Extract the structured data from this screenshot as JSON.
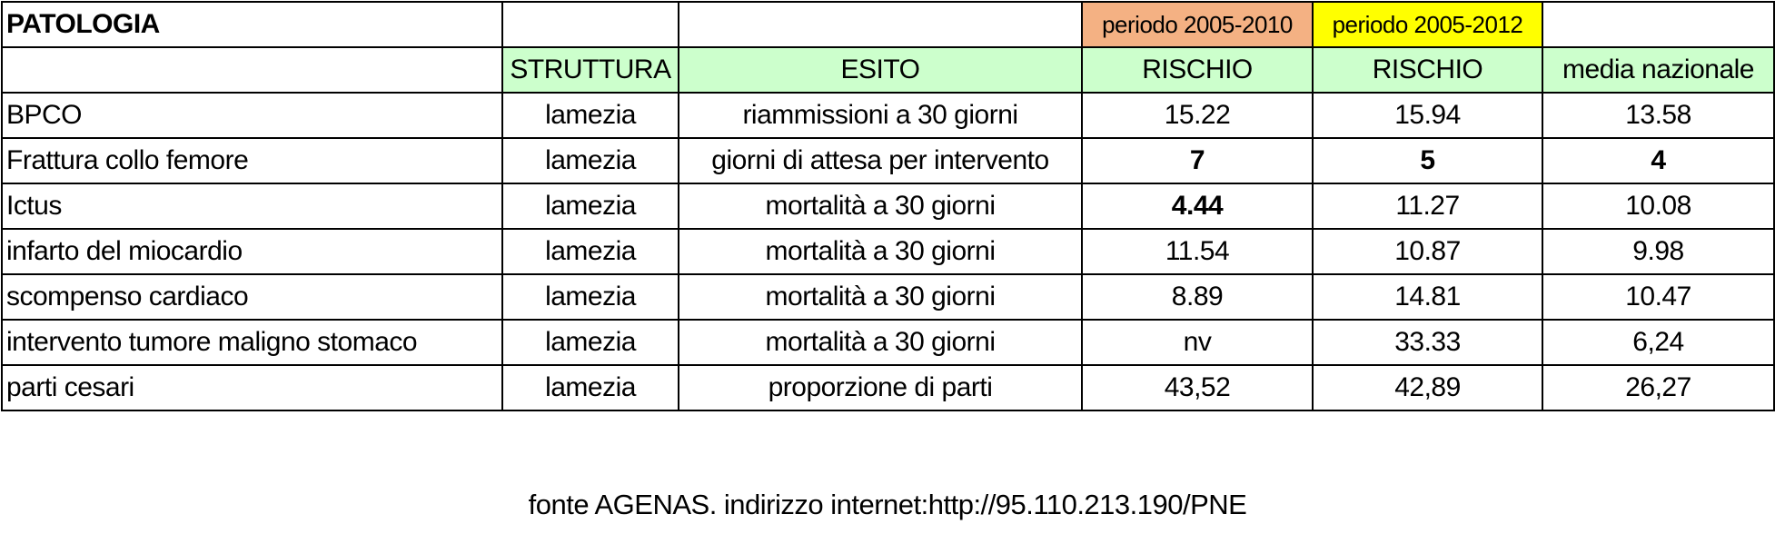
{
  "table": {
    "title": "PATOLOGIA",
    "period_a": "periodo 2005-2010",
    "period_b": "periodo 2005-2012",
    "colors": {
      "period_a": "#f4b183",
      "period_b": "#ffff00",
      "header": "#ccffcc"
    },
    "headers": [
      "",
      "STRUTTURA",
      "ESITO",
      "RISCHIO",
      "RISCHIO",
      "media nazionale"
    ],
    "rows": [
      {
        "patologia": "BPCO",
        "struttura": "lamezia",
        "esito": "riammissioni a 30 giorni",
        "rischio_a": "15.22",
        "rischio_b": "15.94",
        "media": "13.58"
      },
      {
        "patologia": "Frattura collo femore",
        "struttura": "lamezia",
        "esito": "giorni di attesa per intervento",
        "rischio_a": "7",
        "rischio_b": "5",
        "media": "4"
      },
      {
        "patologia": "Ictus",
        "struttura": "lamezia",
        "esito": "mortalità a 30 giorni",
        "rischio_a": "4.44",
        "rischio_b": "11.27",
        "media": "10.08"
      },
      {
        "patologia": "infarto del miocardio",
        "struttura": "lamezia",
        "esito": "mortalità a 30 giorni",
        "rischio_a": "11.54",
        "rischio_b": "10.87",
        "media": "9.98"
      },
      {
        "patologia": "scompenso cardiaco",
        "struttura": "lamezia",
        "esito": "mortalità a 30 giorni",
        "rischio_a": "8.89",
        "rischio_b": "14.81",
        "media": "10.47"
      },
      {
        "patologia": "intervento tumore maligno  stomaco",
        "struttura": "lamezia",
        "esito": "mortalità a 30 giorni",
        "rischio_a": "nv",
        "rischio_b": "33.33",
        "media": "6,24"
      },
      {
        "patologia": "parti cesari",
        "struttura": "lamezia",
        "esito": "proporzione di parti",
        "rischio_a": "43,52",
        "rischio_b": "42,89",
        "media": "26,27"
      }
    ]
  },
  "source_note": "fonte AGENAS. indirizzo internet:http://95.110.213.190/PNE"
}
